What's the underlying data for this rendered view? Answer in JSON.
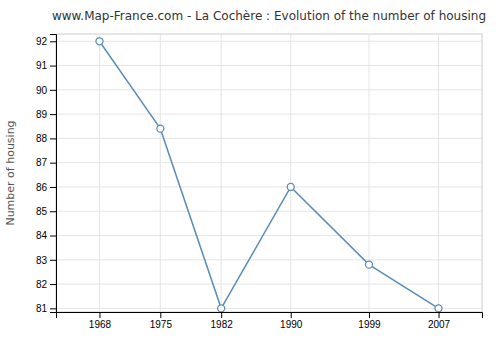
{
  "chart_data": {
    "type": "line",
    "title": "www.Map-France.com - La Cochère : Evolution of the number of housing",
    "ylabel": "Number of housing",
    "x": [
      1968,
      1975,
      1982,
      1990,
      1999,
      2007
    ],
    "values": [
      92,
      88.4,
      81,
      86,
      82.8,
      81
    ],
    "color": "#5b8db8",
    "marker": "circle",
    "xlim": [
      1963,
      2012
    ],
    "ylim": [
      80.85,
      92.3
    ],
    "xticks": [
      1968,
      1975,
      1982,
      1990,
      1999,
      2007
    ],
    "yticks": [
      81,
      82,
      83,
      84,
      85,
      86,
      87,
      88,
      89,
      90,
      91,
      92
    ],
    "grid": true
  }
}
